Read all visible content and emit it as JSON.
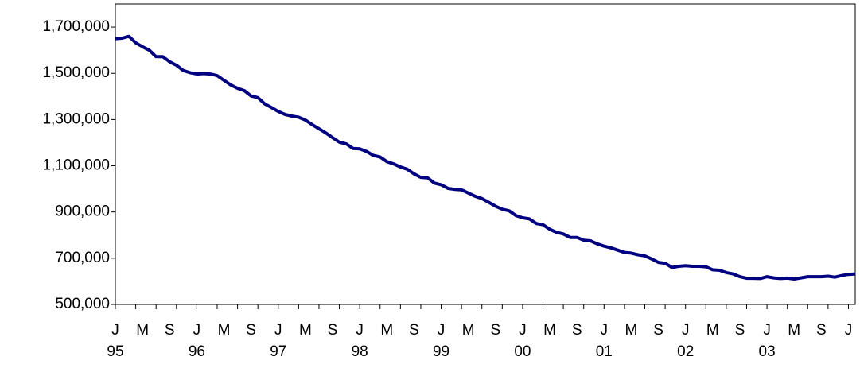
{
  "chart_data": {
    "type": "line",
    "categories": [
      "J",
      null,
      null,
      null,
      "M",
      null,
      null,
      null,
      "S",
      null,
      null,
      null,
      "J",
      null,
      null,
      null,
      "M",
      null,
      null,
      null,
      "S",
      null,
      null,
      null,
      "J",
      null,
      null,
      null,
      "M",
      null,
      null,
      null,
      "S",
      null,
      null,
      null,
      "J",
      null,
      null,
      null,
      "M",
      null,
      null,
      null,
      "S",
      null,
      null,
      null,
      "J",
      null,
      null,
      null,
      "M",
      null,
      null,
      null,
      "S",
      null,
      null,
      null,
      "J",
      null,
      null,
      null,
      "M",
      null,
      null,
      null,
      "S",
      null,
      null,
      null,
      "J",
      null,
      null,
      null,
      "M",
      null,
      null,
      null,
      "S",
      null,
      null,
      null,
      "J",
      null,
      null,
      null,
      "M",
      null,
      null,
      null,
      "S",
      null,
      null,
      null,
      "J",
      null,
      null,
      null,
      "M",
      null,
      null,
      null,
      "S",
      null,
      null,
      null,
      "J",
      null
    ],
    "years": [
      "95",
      "96",
      "97",
      "98",
      "99",
      "00",
      "01",
      "02",
      "03"
    ],
    "color": "#000080",
    "values": [
      1650000,
      1652000,
      1660000,
      1632000,
      1615000,
      1600000,
      1572000,
      1572000,
      1550000,
      1535000,
      1512000,
      1503000,
      1497000,
      1499000,
      1497000,
      1490000,
      1470000,
      1450000,
      1435000,
      1425000,
      1402000,
      1395000,
      1368000,
      1352000,
      1335000,
      1322000,
      1315000,
      1310000,
      1298000,
      1278000,
      1260000,
      1242000,
      1222000,
      1202000,
      1195000,
      1175000,
      1173000,
      1162000,
      1145000,
      1138000,
      1118000,
      1108000,
      1095000,
      1085000,
      1065000,
      1050000,
      1048000,
      1025000,
      1018000,
      1002000,
      998000,
      996000,
      982000,
      968000,
      958000,
      942000,
      925000,
      912000,
      905000,
      885000,
      875000,
      870000,
      850000,
      845000,
      825000,
      812000,
      805000,
      790000,
      790000,
      778000,
      775000,
      762000,
      752000,
      745000,
      735000,
      725000,
      722000,
      715000,
      710000,
      697000,
      682000,
      678000,
      660000,
      665000,
      668000,
      665000,
      665000,
      663000,
      650000,
      648000,
      638000,
      632000,
      620000,
      613000,
      613000,
      612000,
      620000,
      615000,
      612000,
      614000,
      610000,
      615000,
      620000,
      620000,
      620000,
      622000,
      618000,
      625000,
      630000,
      632000
    ],
    "ylim": [
      500000,
      1800000
    ],
    "yticks": [
      {
        "value": 500000,
        "label": "500,000"
      },
      {
        "value": 700000,
        "label": "700,000"
      },
      {
        "value": 900000,
        "label": "900,000"
      },
      {
        "value": 1100000,
        "label": "1,100,000"
      },
      {
        "value": 1300000,
        "label": "1,300,000"
      },
      {
        "value": 1500000,
        "label": "1,500,000"
      },
      {
        "value": 1700000,
        "label": "1,700,000"
      }
    ]
  }
}
